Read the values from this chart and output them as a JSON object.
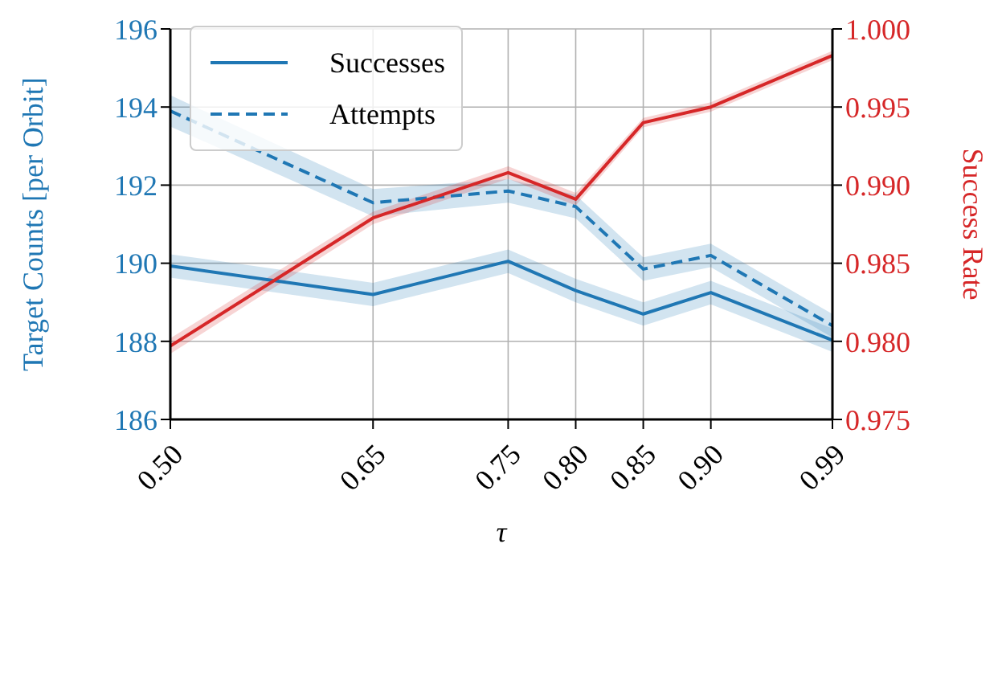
{
  "chart_data": {
    "type": "line",
    "xlabel": "τ",
    "ylabel": "Target Counts [per Orbit]",
    "y2label": "Success Rate",
    "x": [
      0.5,
      0.65,
      0.75,
      0.8,
      0.85,
      0.9,
      0.99
    ],
    "xlim": [
      0.5,
      0.99
    ],
    "xticks": [
      {
        "value": 0.5,
        "label": "0.50"
      },
      {
        "value": 0.65,
        "label": "0.65"
      },
      {
        "value": 0.75,
        "label": "0.75"
      },
      {
        "value": 0.8,
        "label": "0.80"
      },
      {
        "value": 0.85,
        "label": "0.85"
      },
      {
        "value": 0.9,
        "label": "0.90"
      },
      {
        "value": 0.99,
        "label": "0.99"
      }
    ],
    "ylim": [
      186,
      196
    ],
    "yticks": [
      186,
      188,
      190,
      192,
      194,
      196
    ],
    "y2lim": [
      0.975,
      1.0
    ],
    "y2ticks": [
      {
        "value": 0.975,
        "label": "0.975"
      },
      {
        "value": 0.98,
        "label": "0.980"
      },
      {
        "value": 0.985,
        "label": "0.985"
      },
      {
        "value": 0.99,
        "label": "0.990"
      },
      {
        "value": 0.995,
        "label": "0.995"
      },
      {
        "value": 1.0,
        "label": "1.000"
      }
    ],
    "grid": true,
    "legend": "top left",
    "series": [
      {
        "name": "Successes",
        "color": "#1f77b4",
        "line_style": "solid",
        "values": [
          189.93,
          189.2,
          190.05,
          189.3,
          188.7,
          189.25,
          188.03
        ],
        "lower": [
          189.63,
          188.9,
          189.75,
          189.0,
          188.4,
          188.95,
          187.73
        ],
        "upper": [
          190.23,
          189.5,
          190.35,
          189.6,
          189.0,
          189.55,
          188.33
        ]
      },
      {
        "name": "Attempts",
        "color": "#1f77b4",
        "line_style": "dashed",
        "values": [
          193.9,
          191.55,
          191.85,
          191.45,
          189.85,
          190.2,
          188.4
        ],
        "lower": [
          193.5,
          191.2,
          191.55,
          191.15,
          189.55,
          189.9,
          188.1
        ],
        "upper": [
          194.3,
          191.9,
          192.15,
          191.75,
          190.15,
          190.5,
          188.7
        ]
      },
      {
        "color": "#d62728",
        "axis": "y2",
        "line_style": "solid",
        "values": [
          0.9797,
          0.9879,
          0.9908,
          0.9891,
          0.994,
          0.995,
          0.9983
        ],
        "lower": [
          0.9792,
          0.9875,
          0.9904,
          0.9887,
          0.9937,
          0.9947,
          0.998
        ],
        "upper": [
          0.9802,
          0.9883,
          0.9912,
          0.9895,
          0.9943,
          0.9953,
          0.9986
        ]
      }
    ]
  }
}
